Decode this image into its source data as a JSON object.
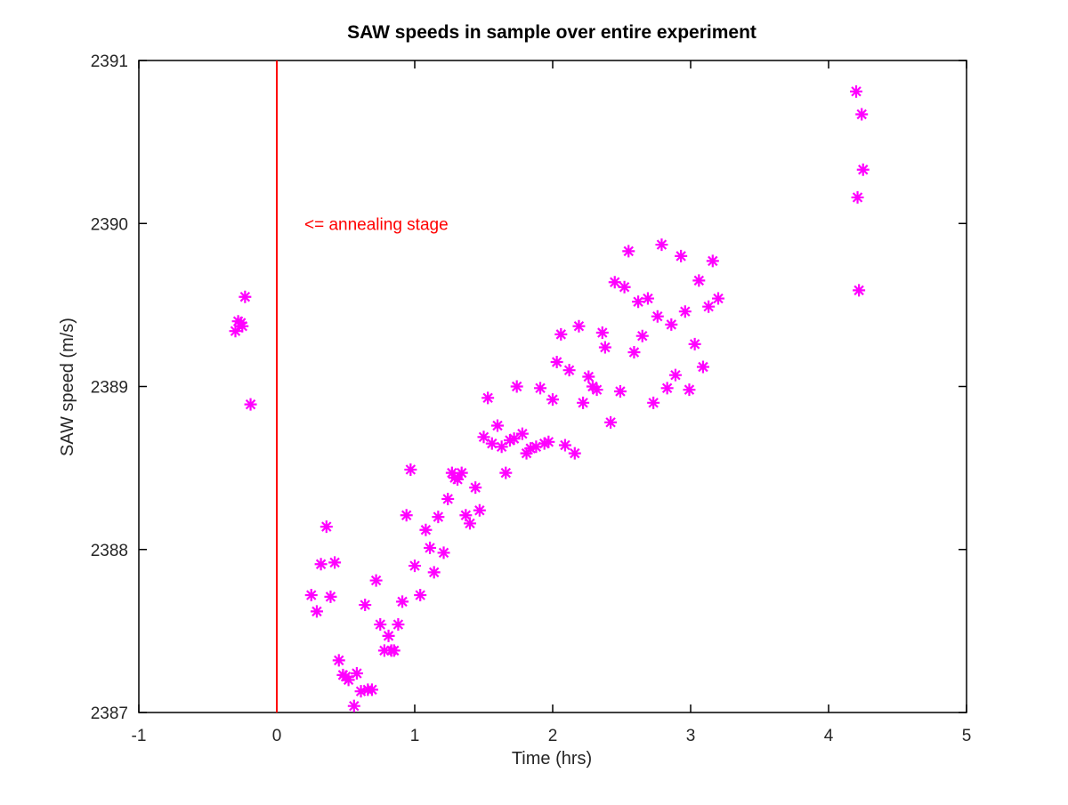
{
  "chart_data": {
    "type": "scatter",
    "title": "SAW speeds in sample over entire experiment",
    "xlabel": "Time (hrs)",
    "ylabel": "SAW speed (m/s)",
    "xlim": [
      -1,
      5
    ],
    "ylim": [
      2387,
      2391
    ],
    "xticks": [
      -1,
      0,
      1,
      2,
      3,
      4,
      5
    ],
    "yticks": [
      2387,
      2388,
      2389,
      2390,
      2391
    ],
    "grid": false,
    "marker": "asterisk",
    "colors": {
      "points": "#ff00ff",
      "vline": "#ff0000",
      "annotation": "#ff0000",
      "axes": "#000000"
    },
    "vline": {
      "x": 0
    },
    "annotation": {
      "text": "<= annealing stage",
      "x": 0.2,
      "y": 2390.0
    },
    "series": [
      {
        "values": [
          [
            -0.3,
            2389.34
          ],
          [
            -0.28,
            2389.4
          ],
          [
            -0.26,
            2389.39
          ],
          [
            -0.25,
            2389.37
          ],
          [
            -0.23,
            2389.55
          ],
          [
            -0.19,
            2388.89
          ],
          [
            0.25,
            2387.72
          ],
          [
            0.29,
            2387.62
          ],
          [
            0.32,
            2387.91
          ],
          [
            0.36,
            2388.14
          ],
          [
            0.39,
            2387.71
          ],
          [
            0.42,
            2387.92
          ],
          [
            0.45,
            2387.32
          ],
          [
            0.48,
            2387.23
          ],
          [
            0.5,
            2387.22
          ],
          [
            0.52,
            2387.2
          ],
          [
            0.56,
            2387.04
          ],
          [
            0.58,
            2387.24
          ],
          [
            0.61,
            2387.13
          ],
          [
            0.64,
            2387.66
          ],
          [
            0.66,
            2387.14
          ],
          [
            0.69,
            2387.14
          ],
          [
            0.72,
            2387.81
          ],
          [
            0.75,
            2387.54
          ],
          [
            0.78,
            2387.38
          ],
          [
            0.81,
            2387.47
          ],
          [
            0.83,
            2387.38
          ],
          [
            0.85,
            2387.38
          ],
          [
            0.88,
            2387.54
          ],
          [
            0.91,
            2387.68
          ],
          [
            0.94,
            2388.21
          ],
          [
            0.97,
            2388.49
          ],
          [
            1.0,
            2387.9
          ],
          [
            1.04,
            2387.72
          ],
          [
            1.08,
            2388.12
          ],
          [
            1.11,
            2388.01
          ],
          [
            1.14,
            2387.86
          ],
          [
            1.17,
            2388.2
          ],
          [
            1.21,
            2387.98
          ],
          [
            1.24,
            2388.31
          ],
          [
            1.27,
            2388.47
          ],
          [
            1.29,
            2388.44
          ],
          [
            1.31,
            2388.43
          ],
          [
            1.34,
            2388.47
          ],
          [
            1.37,
            2388.21
          ],
          [
            1.4,
            2388.16
          ],
          [
            1.44,
            2388.38
          ],
          [
            1.47,
            2388.24
          ],
          [
            1.5,
            2388.69
          ],
          [
            1.53,
            2388.93
          ],
          [
            1.56,
            2388.65
          ],
          [
            1.6,
            2388.76
          ],
          [
            1.63,
            2388.63
          ],
          [
            1.66,
            2388.47
          ],
          [
            1.69,
            2388.67
          ],
          [
            1.72,
            2388.68
          ],
          [
            1.74,
            2389.0
          ],
          [
            1.78,
            2388.71
          ],
          [
            1.81,
            2388.59
          ],
          [
            1.84,
            2388.62
          ],
          [
            1.88,
            2388.63
          ],
          [
            1.91,
            2388.99
          ],
          [
            1.94,
            2388.65
          ],
          [
            1.97,
            2388.66
          ],
          [
            2.0,
            2388.92
          ],
          [
            2.03,
            2389.15
          ],
          [
            2.06,
            2389.32
          ],
          [
            2.09,
            2388.64
          ],
          [
            2.12,
            2389.1
          ],
          [
            2.16,
            2388.59
          ],
          [
            2.19,
            2389.37
          ],
          [
            2.22,
            2388.9
          ],
          [
            2.26,
            2389.06
          ],
          [
            2.29,
            2389.0
          ],
          [
            2.32,
            2388.98
          ],
          [
            2.36,
            2389.33
          ],
          [
            2.38,
            2389.24
          ],
          [
            2.42,
            2388.78
          ],
          [
            2.45,
            2389.64
          ],
          [
            2.49,
            2388.97
          ],
          [
            2.52,
            2389.61
          ],
          [
            2.55,
            2389.83
          ],
          [
            2.59,
            2389.21
          ],
          [
            2.62,
            2389.52
          ],
          [
            2.65,
            2389.31
          ],
          [
            2.69,
            2389.54
          ],
          [
            2.73,
            2388.9
          ],
          [
            2.76,
            2389.43
          ],
          [
            2.79,
            2389.87
          ],
          [
            2.83,
            2388.99
          ],
          [
            2.86,
            2389.38
          ],
          [
            2.89,
            2389.07
          ],
          [
            2.93,
            2389.8
          ],
          [
            2.96,
            2389.46
          ],
          [
            2.99,
            2388.98
          ],
          [
            3.03,
            2389.26
          ],
          [
            3.06,
            2389.65
          ],
          [
            3.09,
            2389.12
          ],
          [
            3.13,
            2389.49
          ],
          [
            3.16,
            2389.77
          ],
          [
            3.2,
            2389.54
          ],
          [
            4.2,
            2390.81
          ],
          [
            4.21,
            2390.16
          ],
          [
            4.22,
            2389.59
          ],
          [
            4.24,
            2390.67
          ],
          [
            4.25,
            2390.33
          ]
        ]
      }
    ]
  }
}
